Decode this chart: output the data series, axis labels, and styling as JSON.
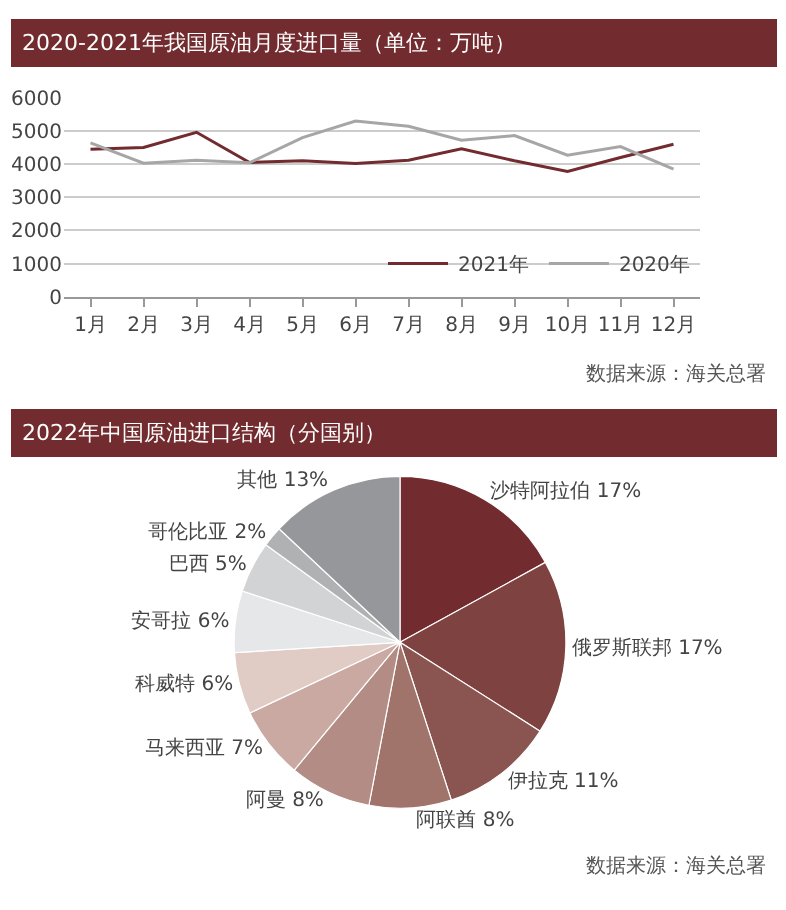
{
  "chart_data": [
    {
      "type": "line",
      "title": "2020-2021年我国原油月度进口量（单位：万吨）",
      "categories": [
        "1月",
        "2月",
        "3月",
        "4月",
        "5月",
        "6月",
        "7月",
        "8月",
        "9月",
        "10月",
        "11月",
        "12月"
      ],
      "series": [
        {
          "name": "2021年",
          "color": "#722b2e",
          "values": [
            4450,
            4500,
            4960,
            4050,
            4100,
            4020,
            4120,
            4460,
            4100,
            3780,
            4200,
            4600
          ]
        },
        {
          "name": "2020年",
          "color": "#a6a6a6",
          "values": [
            4640,
            4030,
            4120,
            4040,
            4800,
            5300,
            5140,
            4720,
            4860,
            4270,
            4530,
            3850
          ]
        }
      ],
      "ylim": [
        0,
        6000
      ],
      "yticks": [
        0,
        1000,
        2000,
        3000,
        4000,
        5000,
        6000
      ],
      "grid": "y",
      "legend": "bottom right",
      "annotations": [
        "数据来源：海关总署"
      ]
    },
    {
      "type": "pie",
      "title": "2022年中国原油进口结构（分国别）",
      "categories": [
        "沙特阿拉伯",
        "俄罗斯联邦",
        "伊拉克",
        "阿联酋",
        "阿曼",
        "马来西亚",
        "科威特",
        "安哥拉",
        "巴西",
        "哥伦比亚",
        "其他"
      ],
      "values": [
        17,
        17,
        11,
        8,
        8,
        7,
        6,
        6,
        5,
        2,
        13
      ],
      "colors": [
        "#722b2e",
        "#7e4340",
        "#8a5550",
        "#a0736b",
        "#b38d85",
        "#c9a9a1",
        "#e0cbc5",
        "#e6e7e9",
        "#d2d3d5",
        "#b0b1b3",
        "#96979b"
      ],
      "value_labels": [
        "17%",
        "17%",
        "11%",
        "8%",
        "8%",
        "7%",
        "6%",
        "6%",
        "5%",
        "2%",
        "13%"
      ],
      "annotations": [
        "数据来源：海关总署"
      ]
    }
  ]
}
